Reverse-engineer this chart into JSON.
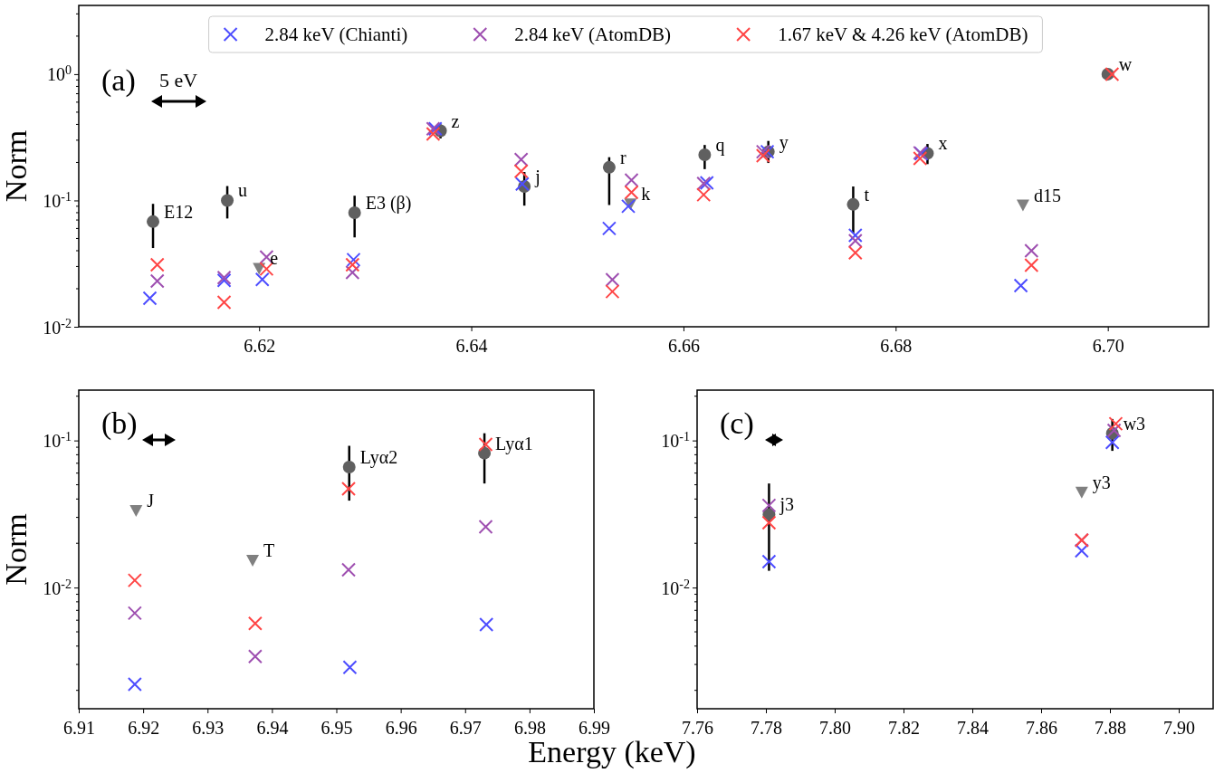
{
  "chart_data": [
    {
      "type": "scatter",
      "ylabel": "Norm",
      "log": "y",
      "xlim": [
        6.603,
        6.7095
      ],
      "ylim": [
        0.01,
        3.5
      ],
      "xticks": [
        6.62,
        6.64,
        6.66,
        6.68,
        {
          "value": 6.7,
          "label": "6.70"
        }
      ],
      "yticks": [
        {
          "value": 0.01,
          "label": "10$^{-2}$"
        },
        {
          "value": 0.1,
          "label": "10$^{-1}$"
        },
        {
          "value": 1,
          "label": "10$^{0}$"
        }
      ],
      "legend": "top",
      "grid": false,
      "series": [
        {
          "color": "#606060",
          "marker": "circle",
          "x": [
            6.61,
            6.617,
            6.629,
            6.6371,
            6.645,
            6.653,
            6.662,
            6.668,
            6.676,
            6.683,
            6.7
          ],
          "values": [
            0.068,
            0.1,
            0.08,
            0.356,
            0.129,
            0.183,
            0.23,
            0.243,
            0.093,
            0.236,
            1.0
          ],
          "errors": [
            [
              0.042,
              0.094
            ],
            [
              0.072,
              0.13
            ],
            [
              0.051,
              0.109
            ],
            [
              0.31,
              0.4
            ],
            [
              0.091,
              0.168
            ],
            [
              0.092,
              0.22
            ],
            [
              0.177,
              0.275
            ],
            [
              0.198,
              0.296
            ],
            [
              0.055,
              0.129
            ],
            [
              0.194,
              0.28
            ],
            [
              0.95,
              1.05
            ]
          ]
        },
        {
          "color": "#808080",
          "marker": "triangle",
          "x": [
            6.62,
            6.655,
            6.692
          ],
          "values": [
            0.029,
            0.094,
            0.092
          ]
        },
        {
          "name": "2.84 keV (Chianti)",
          "color": "#4d4dff",
          "marker": "cross",
          "x": [
            6.6097,
            6.6167,
            6.6203,
            6.6289,
            6.6366,
            6.6448,
            6.653,
            6.6548,
            6.6622,
            6.6679,
            6.6762,
            6.6824,
            6.6918
          ],
          "values": [
            0.0168,
            0.0233,
            0.0237,
            0.034,
            0.37,
            0.135,
            0.06,
            0.09,
            0.138,
            0.243,
            0.053,
            0.235,
            0.0212
          ]
        },
        {
          "name": "2.84 keV (AtomDB)",
          "color": "#9e4fb0",
          "marker": "cross",
          "x": [
            6.6104,
            6.6167,
            6.6207,
            6.6288,
            6.6364,
            6.6447,
            6.6533,
            6.6551,
            6.6619,
            6.6675,
            6.6762,
            6.6823,
            6.6928
          ],
          "values": [
            0.023,
            0.0245,
            0.0356,
            0.0269,
            0.37,
            0.211,
            0.0236,
            0.145,
            0.136,
            0.243,
            0.048,
            0.238,
            0.04
          ]
        },
        {
          "name": "1.67 keV & 4.26 keV (AtomDB)",
          "color": "#ff4545",
          "marker": "cross",
          "x": [
            6.6104,
            6.6167,
            6.6207,
            6.6288,
            6.6364,
            6.6447,
            6.6533,
            6.6551,
            6.6619,
            6.6675,
            6.6762,
            6.6823,
            6.6928,
            6.7004
          ],
          "values": [
            0.031,
            0.0156,
            0.0287,
            0.031,
            0.336,
            0.17,
            0.019,
            0.116,
            0.111,
            0.226,
            0.0385,
            0.215,
            0.0307,
            1.0
          ]
        }
      ],
      "annotations": [
        "(a)",
        "5 eV",
        {
          "text": "E12",
          "x": 6.61,
          "y": 0.068
        },
        {
          "text": "u",
          "x": 6.617,
          "y": 0.1
        },
        {
          "text": "e",
          "x": 6.62,
          "y": 0.029
        },
        {
          "text": "E3 (β)",
          "x": 6.629,
          "y": 0.08
        },
        {
          "text": "z",
          "x": 6.6371,
          "y": 0.356
        },
        {
          "text": "j",
          "x": 6.645,
          "y": 0.129
        },
        {
          "text": "r",
          "x": 6.653,
          "y": 0.183
        },
        {
          "text": "k",
          "x": 6.655,
          "y": 0.094
        },
        {
          "text": "q",
          "x": 6.662,
          "y": 0.23
        },
        {
          "text": "y",
          "x": 6.668,
          "y": 0.243
        },
        {
          "text": "t",
          "x": 6.676,
          "y": 0.093
        },
        {
          "text": "x",
          "x": 6.683,
          "y": 0.236
        },
        {
          "text": "d15",
          "x": 6.692,
          "y": 0.092
        },
        {
          "text": "w",
          "x": 6.7,
          "y": 1.0
        }
      ]
    },
    {
      "type": "scatter",
      "ylabel": "Norm",
      "xlabel": "Energy (keV)",
      "log": "y",
      "xlim": [
        6.91,
        6.99
      ],
      "ylim": [
        0.0015,
        0.22
      ],
      "xticks": [
        6.91,
        6.92,
        6.93,
        6.94,
        6.95,
        6.96,
        6.97,
        6.98,
        6.99
      ],
      "yticks": [
        {
          "value": 0.01,
          "label": "10$^{-2}$"
        },
        {
          "value": 0.1,
          "label": "10$^{-1}$"
        }
      ],
      "grid": false,
      "series": [
        {
          "color": "#606060",
          "marker": "circle",
          "x": [
            6.952,
            6.973
          ],
          "values": [
            0.066,
            0.082
          ],
          "errors": [
            [
              0.039,
              0.092
            ],
            [
              0.051,
              0.112
            ]
          ]
        },
        {
          "color": "#808080",
          "marker": "triangle",
          "x": [
            6.9189,
            6.937
          ],
          "values": [
            0.0334,
            0.0153
          ]
        },
        {
          "color": "#4d4dff",
          "marker": "cross",
          "x": [
            6.9187,
            6.9521,
            6.9733
          ],
          "values": [
            0.0022,
            0.00287,
            0.0056
          ]
        },
        {
          "color": "#9e4fb0",
          "marker": "cross",
          "x": [
            6.9187,
            6.9374,
            6.9519,
            6.9732
          ],
          "values": [
            0.0067,
            0.0034,
            0.0132,
            0.0259
          ]
        },
        {
          "color": "#ff4545",
          "marker": "cross",
          "x": [
            6.9187,
            6.9374,
            6.9519,
            6.9732
          ],
          "values": [
            0.0112,
            0.0057,
            0.047,
            0.094
          ]
        }
      ],
      "annotations": [
        "(b)",
        {
          "text": "J",
          "x": 6.9189,
          "y": 0.0334
        },
        {
          "text": "T",
          "x": 6.937,
          "y": 0.0153
        },
        {
          "text": "Lyα2",
          "x": 6.952,
          "y": 0.066
        },
        {
          "text": "Lyα1",
          "x": 6.973,
          "y": 0.082
        }
      ]
    },
    {
      "type": "scatter",
      "log": "y",
      "xlim": [
        7.76,
        7.91
      ],
      "ylim": [
        0.0015,
        0.22
      ],
      "xticks": [
        7.76,
        7.78,
        {
          "value": 7.8,
          "label": "7.80"
        },
        7.82,
        7.84,
        7.86,
        7.88,
        {
          "value": 7.9,
          "label": "7.90"
        }
      ],
      "yticks": [
        {
          "value": 0.01,
          "label": "10$^{-2}$"
        },
        {
          "value": 0.1,
          "label": "10$^{-1}$"
        }
      ],
      "grid": false,
      "series": [
        {
          "color": "#606060",
          "marker": "circle",
          "x": [
            7.7809,
            7.8807
          ],
          "values": [
            0.0314,
            0.112
          ],
          "errors": [
            [
              0.013,
              0.051
            ],
            [
              0.085,
              0.14
            ]
          ]
        },
        {
          "color": "#808080",
          "marker": "triangle",
          "x": [
            7.8718
          ],
          "values": [
            0.0445
          ]
        },
        {
          "color": "#4d4dff",
          "marker": "cross",
          "x": [
            7.7809,
            7.8718,
            7.8807
          ],
          "values": [
            0.015,
            0.0178,
            0.097
          ]
        },
        {
          "color": "#9e4fb0",
          "marker": "cross",
          "x": [
            7.7809,
            7.8718,
            7.8812
          ],
          "values": [
            0.0362,
            0.021,
            0.117
          ]
        },
        {
          "color": "#ff4545",
          "marker": "cross",
          "x": [
            7.7809,
            7.8718,
            7.8817
          ],
          "values": [
            0.0276,
            0.021,
            0.13
          ]
        }
      ],
      "annotations": [
        "(c)",
        {
          "text": "j3",
          "x": 7.7809,
          "y": 0.0314
        },
        {
          "text": "y3",
          "x": 7.8718,
          "y": 0.0445
        },
        {
          "text": "w3",
          "x": 7.8807,
          "y": 0.112
        }
      ]
    }
  ]
}
